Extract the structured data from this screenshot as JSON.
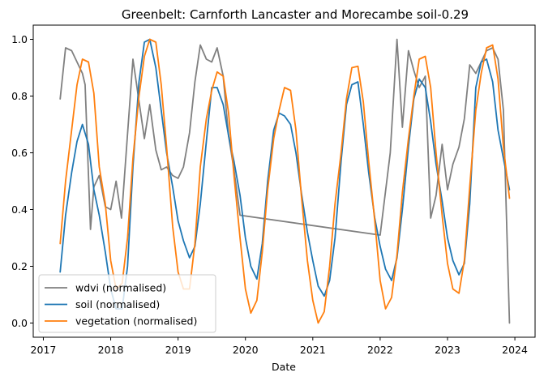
{
  "chart_data": {
    "type": "line",
    "title": "Greenbelt: Carnforth Lancaster and Morecambe soil-0.29",
    "xlabel": "Date",
    "ylabel": "",
    "xlim": [
      2016.85,
      2024.3
    ],
    "ylim": [
      -0.05,
      1.05
    ],
    "xticks": [
      2017,
      2018,
      2019,
      2020,
      2021,
      2022,
      2023,
      2024
    ],
    "yticks": [
      0.0,
      0.2,
      0.4,
      0.6,
      0.8,
      1.0
    ],
    "ytick_labels": [
      "0.0",
      "0.2",
      "0.4",
      "0.6",
      "0.8",
      "1.0"
    ],
    "grid": false,
    "legend_position": "lower-left",
    "series": [
      {
        "name": "wdvi (normalised)",
        "color": "#808080",
        "points": [
          [
            2017.25,
            0.79
          ],
          [
            2017.33,
            0.97
          ],
          [
            2017.42,
            0.96
          ],
          [
            2017.58,
            0.88
          ],
          [
            2017.62,
            0.84
          ],
          [
            2017.7,
            0.33
          ],
          [
            2017.75,
            0.48
          ],
          [
            2017.83,
            0.52
          ],
          [
            2017.92,
            0.41
          ],
          [
            2018.0,
            0.4
          ],
          [
            2018.08,
            0.5
          ],
          [
            2018.16,
            0.37
          ],
          [
            2018.33,
            0.93
          ],
          [
            2018.5,
            0.65
          ],
          [
            2018.58,
            0.77
          ],
          [
            2018.67,
            0.61
          ],
          [
            2018.75,
            0.54
          ],
          [
            2018.83,
            0.55
          ],
          [
            2018.92,
            0.52
          ],
          [
            2019.0,
            0.51
          ],
          [
            2019.08,
            0.55
          ],
          [
            2019.17,
            0.67
          ],
          [
            2019.25,
            0.85
          ],
          [
            2019.33,
            0.98
          ],
          [
            2019.42,
            0.93
          ],
          [
            2019.5,
            0.92
          ],
          [
            2019.58,
            0.97
          ],
          [
            2019.67,
            0.87
          ],
          [
            2019.75,
            0.66
          ],
          [
            2019.83,
            0.54
          ],
          [
            2019.92,
            0.38
          ],
          [
            2022.0,
            0.31
          ],
          [
            2022.15,
            0.6
          ],
          [
            2022.25,
            1.0
          ],
          [
            2022.33,
            0.69
          ],
          [
            2022.42,
            0.96
          ],
          [
            2022.5,
            0.89
          ],
          [
            2022.58,
            0.83
          ],
          [
            2022.67,
            0.87
          ],
          [
            2022.75,
            0.37
          ],
          [
            2022.83,
            0.45
          ],
          [
            2022.92,
            0.63
          ],
          [
            2023.0,
            0.47
          ],
          [
            2023.08,
            0.56
          ],
          [
            2023.17,
            0.62
          ],
          [
            2023.25,
            0.72
          ],
          [
            2023.33,
            0.91
          ],
          [
            2023.42,
            0.88
          ],
          [
            2023.5,
            0.92
          ],
          [
            2023.58,
            0.96
          ],
          [
            2023.67,
            0.97
          ],
          [
            2023.75,
            0.93
          ],
          [
            2023.83,
            0.75
          ],
          [
            2023.92,
            0.0
          ]
        ]
      },
      {
        "name": "soil (normalised)",
        "color": "#1f77b4",
        "points": [
          [
            2017.25,
            0.18
          ],
          [
            2017.33,
            0.38
          ],
          [
            2017.42,
            0.53
          ],
          [
            2017.5,
            0.64
          ],
          [
            2017.58,
            0.7
          ],
          [
            2017.67,
            0.63
          ],
          [
            2017.75,
            0.47
          ],
          [
            2017.83,
            0.38
          ],
          [
            2017.92,
            0.25
          ],
          [
            2018.0,
            0.12
          ],
          [
            2018.08,
            0.05
          ],
          [
            2018.17,
            0.05
          ],
          [
            2018.25,
            0.2
          ],
          [
            2018.33,
            0.55
          ],
          [
            2018.42,
            0.85
          ],
          [
            2018.5,
            0.99
          ],
          [
            2018.58,
            1.0
          ],
          [
            2018.67,
            0.9
          ],
          [
            2018.75,
            0.75
          ],
          [
            2018.83,
            0.6
          ],
          [
            2018.92,
            0.48
          ],
          [
            2019.0,
            0.36
          ],
          [
            2019.08,
            0.29
          ],
          [
            2019.17,
            0.23
          ],
          [
            2019.25,
            0.27
          ],
          [
            2019.33,
            0.42
          ],
          [
            2019.42,
            0.64
          ],
          [
            2019.5,
            0.83
          ],
          [
            2019.58,
            0.83
          ],
          [
            2019.67,
            0.77
          ],
          [
            2019.75,
            0.66
          ],
          [
            2019.83,
            0.57
          ],
          [
            2019.92,
            0.45
          ],
          [
            2020.0,
            0.3
          ],
          [
            2020.08,
            0.2
          ],
          [
            2020.17,
            0.155
          ],
          [
            2020.25,
            0.28
          ],
          [
            2020.33,
            0.5
          ],
          [
            2020.42,
            0.68
          ],
          [
            2020.5,
            0.74
          ],
          [
            2020.58,
            0.73
          ],
          [
            2020.67,
            0.7
          ],
          [
            2020.75,
            0.6
          ],
          [
            2020.83,
            0.46
          ],
          [
            2020.92,
            0.32
          ],
          [
            2021.0,
            0.22
          ],
          [
            2021.08,
            0.13
          ],
          [
            2021.17,
            0.095
          ],
          [
            2021.25,
            0.15
          ],
          [
            2021.33,
            0.3
          ],
          [
            2021.42,
            0.57
          ],
          [
            2021.5,
            0.77
          ],
          [
            2021.58,
            0.84
          ],
          [
            2021.67,
            0.85
          ],
          [
            2021.75,
            0.7
          ],
          [
            2021.83,
            0.53
          ],
          [
            2021.92,
            0.37
          ],
          [
            2022.0,
            0.27
          ],
          [
            2022.08,
            0.19
          ],
          [
            2022.17,
            0.15
          ],
          [
            2022.25,
            0.23
          ],
          [
            2022.33,
            0.4
          ],
          [
            2022.42,
            0.62
          ],
          [
            2022.5,
            0.79
          ],
          [
            2022.58,
            0.86
          ],
          [
            2022.67,
            0.83
          ],
          [
            2022.75,
            0.71
          ],
          [
            2022.83,
            0.56
          ],
          [
            2022.92,
            0.43
          ],
          [
            2023.0,
            0.3
          ],
          [
            2023.08,
            0.22
          ],
          [
            2023.17,
            0.17
          ],
          [
            2023.25,
            0.21
          ],
          [
            2023.33,
            0.42
          ],
          [
            2023.42,
            0.83
          ],
          [
            2023.5,
            0.92
          ],
          [
            2023.58,
            0.93
          ],
          [
            2023.67,
            0.85
          ],
          [
            2023.75,
            0.68
          ],
          [
            2023.83,
            0.58
          ],
          [
            2023.92,
            0.47
          ]
        ]
      },
      {
        "name": "vegetation (normalised)",
        "color": "#ff7f0e",
        "points": [
          [
            2017.25,
            0.28
          ],
          [
            2017.33,
            0.5
          ],
          [
            2017.42,
            0.68
          ],
          [
            2017.5,
            0.84
          ],
          [
            2017.58,
            0.93
          ],
          [
            2017.67,
            0.92
          ],
          [
            2017.75,
            0.81
          ],
          [
            2017.83,
            0.55
          ],
          [
            2017.92,
            0.42
          ],
          [
            2018.0,
            0.22
          ],
          [
            2018.08,
            0.12
          ],
          [
            2018.17,
            0.14
          ],
          [
            2018.25,
            0.3
          ],
          [
            2018.33,
            0.58
          ],
          [
            2018.42,
            0.8
          ],
          [
            2018.5,
            0.94
          ],
          [
            2018.58,
            1.0
          ],
          [
            2018.67,
            0.99
          ],
          [
            2018.75,
            0.84
          ],
          [
            2018.83,
            0.62
          ],
          [
            2018.92,
            0.34
          ],
          [
            2019.0,
            0.18
          ],
          [
            2019.08,
            0.12
          ],
          [
            2019.17,
            0.12
          ],
          [
            2019.25,
            0.28
          ],
          [
            2019.33,
            0.55
          ],
          [
            2019.42,
            0.72
          ],
          [
            2019.5,
            0.82
          ],
          [
            2019.58,
            0.885
          ],
          [
            2019.67,
            0.87
          ],
          [
            2019.75,
            0.74
          ],
          [
            2019.83,
            0.52
          ],
          [
            2019.92,
            0.3
          ],
          [
            2020.0,
            0.12
          ],
          [
            2020.08,
            0.035
          ],
          [
            2020.17,
            0.08
          ],
          [
            2020.25,
            0.25
          ],
          [
            2020.33,
            0.47
          ],
          [
            2020.42,
            0.65
          ],
          [
            2020.5,
            0.75
          ],
          [
            2020.58,
            0.83
          ],
          [
            2020.67,
            0.82
          ],
          [
            2020.75,
            0.68
          ],
          [
            2020.83,
            0.45
          ],
          [
            2020.92,
            0.22
          ],
          [
            2021.0,
            0.08
          ],
          [
            2021.08,
            0.0
          ],
          [
            2021.17,
            0.04
          ],
          [
            2021.25,
            0.2
          ],
          [
            2021.33,
            0.42
          ],
          [
            2021.42,
            0.6
          ],
          [
            2021.5,
            0.79
          ],
          [
            2021.58,
            0.9
          ],
          [
            2021.67,
            0.905
          ],
          [
            2021.75,
            0.78
          ],
          [
            2021.83,
            0.57
          ],
          [
            2021.92,
            0.36
          ],
          [
            2022.0,
            0.15
          ],
          [
            2022.08,
            0.05
          ],
          [
            2022.17,
            0.09
          ],
          [
            2022.25,
            0.24
          ],
          [
            2022.33,
            0.46
          ],
          [
            2022.42,
            0.65
          ],
          [
            2022.5,
            0.8
          ],
          [
            2022.58,
            0.93
          ],
          [
            2022.67,
            0.94
          ],
          [
            2022.75,
            0.83
          ],
          [
            2022.83,
            0.6
          ],
          [
            2022.92,
            0.38
          ],
          [
            2023.0,
            0.21
          ],
          [
            2023.08,
            0.12
          ],
          [
            2023.17,
            0.105
          ],
          [
            2023.25,
            0.22
          ],
          [
            2023.33,
            0.48
          ],
          [
            2023.42,
            0.75
          ],
          [
            2023.5,
            0.88
          ],
          [
            2023.58,
            0.97
          ],
          [
            2023.67,
            0.98
          ],
          [
            2023.75,
            0.86
          ],
          [
            2023.83,
            0.62
          ],
          [
            2023.92,
            0.44
          ]
        ]
      }
    ]
  }
}
